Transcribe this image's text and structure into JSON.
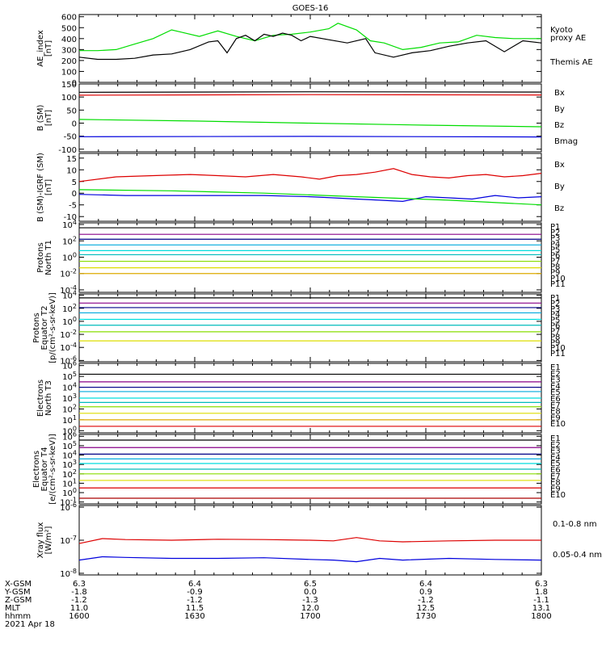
{
  "title": "GOES-16",
  "colors": {
    "black": "#000000",
    "green": "#00dd00",
    "red": "#dd0000",
    "blue": "#0000dd",
    "navy": "#000088",
    "purple": "#880088",
    "cyan": "#00aadd",
    "teal": "#00bbbb",
    "aqua": "#00dddd",
    "lime": "#88dd00",
    "yellow": "#dddd00",
    "gold": "#ddaa00",
    "orange": "#dd8800",
    "darkred": "#aa0000"
  },
  "chart_data": [
    {
      "type": "line",
      "ylabel": [
        "AE_index",
        "[nT]"
      ],
      "yticks": [
        "0",
        "100",
        "200",
        "300",
        "400",
        "500",
        "600"
      ],
      "ylim": [
        0,
        620
      ],
      "series": [
        {
          "name": "Kyoto proxy AE",
          "color": "#00dd00",
          "x": [
            0,
            0.04,
            0.08,
            0.12,
            0.16,
            0.2,
            0.22,
            0.26,
            0.3,
            0.34,
            0.38,
            0.42,
            0.46,
            0.5,
            0.54,
            0.56,
            0.6,
            0.63,
            0.66,
            0.7,
            0.74,
            0.78,
            0.82,
            0.86,
            0.9,
            0.94,
            1.0
          ],
          "y": [
            290,
            290,
            300,
            350,
            400,
            480,
            460,
            420,
            470,
            420,
            380,
            430,
            440,
            460,
            490,
            540,
            480,
            380,
            360,
            300,
            320,
            360,
            370,
            430,
            410,
            400,
            400
          ]
        },
        {
          "name": "Themis AE",
          "color": "#000000",
          "x": [
            0,
            0.04,
            0.08,
            0.12,
            0.16,
            0.2,
            0.24,
            0.28,
            0.3,
            0.32,
            0.34,
            0.36,
            0.38,
            0.4,
            0.42,
            0.44,
            0.46,
            0.48,
            0.5,
            0.54,
            0.58,
            0.62,
            0.64,
            0.68,
            0.72,
            0.76,
            0.8,
            0.84,
            0.88,
            0.92,
            0.96,
            1.0
          ],
          "y": [
            230,
            210,
            210,
            220,
            250,
            260,
            300,
            370,
            380,
            270,
            400,
            430,
            380,
            440,
            420,
            450,
            430,
            380,
            420,
            390,
            360,
            400,
            270,
            230,
            270,
            290,
            330,
            360,
            380,
            280,
            380,
            360
          ]
        }
      ]
    },
    {
      "type": "line",
      "ylabel": [
        "B (SM)",
        "[nT]"
      ],
      "yticks": [
        "-100",
        "-50",
        "0",
        "50",
        "100",
        "150"
      ],
      "ylim": [
        -110,
        150
      ],
      "series": [
        {
          "name": "Bx",
          "color": "#0000dd",
          "x": [
            0,
            0.5,
            1.0
          ],
          "y": [
            -52,
            -51,
            -53
          ]
        },
        {
          "name": "By",
          "color": "#00dd00",
          "x": [
            0,
            0.25,
            0.5,
            0.75,
            1.0
          ],
          "y": [
            14,
            8,
            0,
            -8,
            -14
          ]
        },
        {
          "name": "Bz",
          "color": "#dd0000",
          "x": [
            0,
            0.5,
            1.0
          ],
          "y": [
            107,
            109,
            108
          ]
        },
        {
          "name": "Bmag",
          "color": "#000000",
          "x": [
            0,
            0.5,
            1.0
          ],
          "y": [
            118,
            120,
            119
          ]
        }
      ]
    },
    {
      "type": "line",
      "ylabel": [
        "B (SM)-IGRF (SM)",
        "[nT]"
      ],
      "yticks": [
        "-10",
        "-5",
        "0",
        "5",
        "10",
        "15"
      ],
      "ylim": [
        -12,
        17
      ],
      "series": [
        {
          "name": "Bx",
          "color": "#0000dd",
          "x": [
            0,
            0.1,
            0.2,
            0.3,
            0.4,
            0.5,
            0.55,
            0.6,
            0.65,
            0.7,
            0.75,
            0.8,
            0.85,
            0.9,
            0.95,
            1.0
          ],
          "y": [
            -0.5,
            -1,
            -1,
            -1,
            -1,
            -1.5,
            -2,
            -2.5,
            -3,
            -3.5,
            -1.5,
            -2,
            -2.5,
            -1,
            -2,
            -1.5
          ]
        },
        {
          "name": "By",
          "color": "#00dd00",
          "x": [
            0,
            0.2,
            0.4,
            0.6,
            0.8,
            1.0
          ],
          "y": [
            1.5,
            1,
            0,
            -1.5,
            -3,
            -5
          ]
        },
        {
          "name": "Bz",
          "color": "#dd0000",
          "x": [
            0,
            0.08,
            0.16,
            0.24,
            0.3,
            0.36,
            0.42,
            0.48,
            0.52,
            0.56,
            0.6,
            0.64,
            0.68,
            0.72,
            0.76,
            0.8,
            0.84,
            0.88,
            0.92,
            0.96,
            1.0
          ],
          "y": [
            5,
            7,
            7.5,
            8,
            7.5,
            7,
            8,
            7,
            6,
            7.5,
            8,
            9,
            10.5,
            8,
            7,
            6.5,
            7.5,
            8,
            7,
            7.5,
            8.5
          ]
        }
      ]
    },
    {
      "type": "line",
      "log": true,
      "ylabel": [
        "Protons",
        "North T1"
      ],
      "yticks": [
        "10^-4",
        "10^-2",
        "10^0",
        "10^2",
        "10^4"
      ],
      "ylim": [
        -4.3,
        4.2
      ],
      "series": [
        {
          "name": "P1",
          "color": "#000000",
          "y": 3.6
        },
        {
          "name": "P2",
          "color": "#880088",
          "y": 2.8
        },
        {
          "name": "P3",
          "color": "#000088",
          "y": 2.2
        },
        {
          "name": "P4",
          "color": "#00aadd",
          "y": 1.5
        },
        {
          "name": "P5",
          "color": "#00dddd",
          "y": 0.8
        },
        {
          "name": "P6",
          "color": "#00bbbb",
          "y": 0.3
        },
        {
          "name": "P7",
          "color": "#88dd00",
          "y": -0.5
        },
        {
          "name": "P8",
          "color": "#dddd00",
          "y": -1.3
        },
        {
          "name": "P9",
          "color": "#ddaa00",
          "y": -2.0
        }
      ],
      "labels": [
        "P1",
        "P2",
        "P3",
        "P4",
        "P5",
        "P6",
        "P7",
        "P8",
        "P9",
        "P10",
        "P11"
      ],
      "label_colors": [
        "#000000",
        "#880088",
        "#000088",
        "#00aadd",
        "#00dddd",
        "#00bbbb",
        "#dddd00",
        "#ddaa00",
        "#dd8800",
        "#dd0000",
        "#aa0000"
      ]
    },
    {
      "type": "line",
      "log": true,
      "ylabel": [
        "Protons",
        "Equator T2",
        "[p/(cm²-s-sr-keV)]"
      ],
      "yticks": [
        "10^-6",
        "10^-4",
        "10^-2",
        "10^0",
        "10^2",
        "10^4"
      ],
      "ylim": [
        -6.2,
        4.2
      ],
      "series": [
        {
          "name": "P1",
          "color": "#000000",
          "y": 3.6
        },
        {
          "name": "P2",
          "color": "#880088",
          "y": 2.8
        },
        {
          "name": "P3",
          "color": "#000088",
          "y": 2.1
        },
        {
          "name": "P4",
          "color": "#00aadd",
          "y": 1.3
        },
        {
          "name": "P5",
          "color": "#00dddd",
          "y": 0.3
        },
        {
          "name": "P6",
          "color": "#00bbbb",
          "y": -0.6
        },
        {
          "name": "P7",
          "color": "#88dd00",
          "y": -1.6
        },
        {
          "name": "P8",
          "color": "#dddd00",
          "y": -3.0
        }
      ],
      "labels": [
        "P1",
        "P2",
        "P3",
        "P4",
        "P5",
        "P6",
        "P7",
        "P8",
        "P9",
        "P10",
        "P11"
      ],
      "label_colors": [
        "#000000",
        "#880088",
        "#000088",
        "#00aadd",
        "#00dddd",
        "#00bbbb",
        "#dddd00",
        "#ddaa00",
        "#dd8800",
        "#dd0000",
        "#aa0000"
      ]
    },
    {
      "type": "line",
      "log": true,
      "ylabel": [
        "Electrons",
        "North T3"
      ],
      "yticks": [
        "10^0",
        "10^1",
        "10^2",
        "10^3",
        "10^4",
        "10^5",
        "10^6"
      ],
      "ylim": [
        -0.2,
        6.2
      ],
      "series": [
        {
          "name": "E1",
          "color": "#000000",
          "y": 5.2
        },
        {
          "name": "E2",
          "color": "#880088",
          "y": 4.5
        },
        {
          "name": "E3",
          "color": "#000088",
          "y": 4.0
        },
        {
          "name": "E4",
          "color": "#00aadd",
          "y": 3.6
        },
        {
          "name": "E5",
          "color": "#00dddd",
          "y": 3.0
        },
        {
          "name": "E6",
          "color": "#00bbbb",
          "y": 2.6
        },
        {
          "name": "E7",
          "color": "#88dd00",
          "y": 2.2
        },
        {
          "name": "E8",
          "color": "#dddd00",
          "y": 1.6
        },
        {
          "name": "E9",
          "color": "#ddaa00",
          "y": 1.0
        },
        {
          "name": "E10",
          "color": "#dd0000",
          "y": 0.4
        }
      ],
      "labels": [
        "E1",
        "E2",
        "E3",
        "E4",
        "E5",
        "E6",
        "E7",
        "E8",
        "E9",
        "E10"
      ],
      "label_colors": [
        "#000000",
        "#880088",
        "#000088",
        "#00aadd",
        "#00dddd",
        "#00bbbb",
        "#88dd00",
        "#dddd00",
        "#dd0000",
        "#aa0000"
      ]
    },
    {
      "type": "line",
      "log": true,
      "ylabel": [
        "Electrons",
        "Equator T4",
        "[e/(cm²-s-sr-keV)]"
      ],
      "yticks": [
        "10^-1",
        "10^0",
        "10^1",
        "10^2",
        "10^3",
        "10^4",
        "10^5",
        "10^6"
      ],
      "ylim": [
        -1.2,
        6.2
      ],
      "series": [
        {
          "name": "E1",
          "color": "#000000",
          "y": 5.6
        },
        {
          "name": "E2",
          "color": "#880088",
          "y": 4.8
        },
        {
          "name": "E3",
          "color": "#000088",
          "y": 4.1
        },
        {
          "name": "E4",
          "color": "#00aadd",
          "y": 3.6
        },
        {
          "name": "E5",
          "color": "#00dddd",
          "y": 3.1
        },
        {
          "name": "E6",
          "color": "#00bbbb",
          "y": 2.5
        },
        {
          "name": "E7",
          "color": "#88dd00",
          "y": 2.0
        },
        {
          "name": "E8",
          "color": "#dddd00",
          "y": 1.3
        },
        {
          "name": "E9",
          "color": "#dd0000",
          "y": 0.5
        },
        {
          "name": "E10",
          "color": "#aa0000",
          "y": -0.6
        }
      ],
      "labels": [
        "E1",
        "E2",
        "E3",
        "E4",
        "E5",
        "E6",
        "E7",
        "E8",
        "E9",
        "E10"
      ],
      "label_colors": [
        "#000000",
        "#880088",
        "#000088",
        "#00aadd",
        "#00dddd",
        "#00bbbb",
        "#88dd00",
        "#dddd00",
        "#dd0000",
        "#aa0000"
      ]
    },
    {
      "type": "line",
      "log": true,
      "ylabel": [
        "Xray flux",
        "[W/m²]"
      ],
      "yticks": [
        "10^-8",
        "10^-7",
        "10^-6"
      ],
      "ylim": [
        -8.05,
        -5.95
      ],
      "series": [
        {
          "name": "0.1-0.8 nm",
          "color": "#dd0000",
          "x": [
            0,
            0.05,
            0.1,
            0.2,
            0.3,
            0.4,
            0.5,
            0.55,
            0.6,
            0.65,
            0.7,
            0.8,
            0.9,
            1.0
          ],
          "y": [
            -7.1,
            -6.95,
            -6.98,
            -7.0,
            -6.97,
            -6.98,
            -7.0,
            -7.02,
            -6.92,
            -7.02,
            -7.05,
            -7.02,
            -7.0,
            -7.0
          ]
        },
        {
          "name": "0.05-0.4 nm",
          "color": "#0000dd",
          "x": [
            0,
            0.05,
            0.1,
            0.2,
            0.3,
            0.4,
            0.5,
            0.55,
            0.6,
            0.65,
            0.7,
            0.8,
            0.9,
            1.0
          ],
          "y": [
            -7.6,
            -7.5,
            -7.52,
            -7.55,
            -7.55,
            -7.53,
            -7.58,
            -7.6,
            -7.65,
            -7.55,
            -7.6,
            -7.55,
            -7.58,
            -7.6
          ]
        }
      ]
    }
  ],
  "right_labels": {
    "ae": {
      "kyoto_1": "Kyoto",
      "kyoto_2": "proxy AE",
      "themis": "Themis AE"
    },
    "b": [
      "Bx",
      "By",
      "Bz",
      "Bmag"
    ],
    "bigrf": [
      "Bx",
      "By",
      "Bz"
    ],
    "xray": [
      "0.1-0.8 nm",
      "0.05-0.4 nm"
    ]
  },
  "x_axis": {
    "row_labels": [
      "X-GSM",
      "Y-GSM",
      "Z-GSM",
      "MLT",
      "hhmm"
    ],
    "columns": [
      {
        "x_gsm": "6.3",
        "y_gsm": "-1.8",
        "z_gsm": "-1.2",
        "mlt": "11.0",
        "hhmm": "1600"
      },
      {
        "x_gsm": "6.4",
        "y_gsm": "-0.9",
        "z_gsm": "-1.2",
        "mlt": "11.5",
        "hhmm": "1630"
      },
      {
        "x_gsm": "6.5",
        "y_gsm": "0.0",
        "z_gsm": "-1.3",
        "mlt": "12.0",
        "hhmm": "1700"
      },
      {
        "x_gsm": "6.4",
        "y_gsm": "0.9",
        "z_gsm": "-1.2",
        "mlt": "12.5",
        "hhmm": "1730"
      },
      {
        "x_gsm": "6.3",
        "y_gsm": "1.8",
        "z_gsm": "-1.1",
        "mlt": "13.1",
        "hhmm": "1800"
      }
    ],
    "date": "2021 Apr 18"
  }
}
